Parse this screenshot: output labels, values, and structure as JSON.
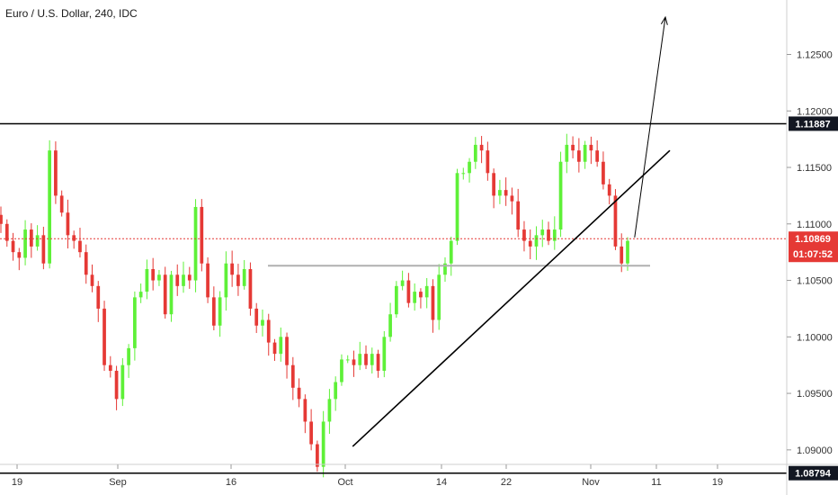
{
  "title": "Euro / U.S. Dollar, 240, IDC",
  "colors": {
    "up": "#5ef038",
    "down": "#e53935",
    "line": "#000000",
    "support": "#b0b0b0",
    "current": "#e53935"
  },
  "chart_data": {
    "type": "candlestick",
    "symbol": "EURUSD",
    "interval": "240",
    "source": "IDC",
    "y_ticks": [
      "1.12500",
      "1.12000",
      "1.11500",
      "1.11000",
      "1.10500",
      "1.10000",
      "1.09500",
      "1.09000"
    ],
    "x_ticks": [
      "19",
      "Sep",
      "16",
      "Oct",
      "14",
      "22",
      "Nov",
      "11",
      "19"
    ],
    "ylim": [
      1.0872,
      1.1295
    ],
    "resistance": 1.11887,
    "support_bottom": 1.08794,
    "support_mid": 1.1063,
    "last_price": "1.10869",
    "countdown": "01:07:52",
    "labels": {
      "resistance": "1.11887",
      "bottom": "1.08794"
    },
    "trendline": [
      {
        "date": "Oct 2",
        "price": 1.0903
      },
      {
        "date": "Nov 11",
        "price": 1.1165
      }
    ],
    "projection": [
      {
        "date": "Nov 7",
        "price": 1.1088
      },
      {
        "date": "Nov 11",
        "price": 1.1283
      }
    ],
    "closes": [
      1.11,
      1.1085,
      1.1075,
      1.107,
      1.1095,
      1.108,
      1.109,
      1.1065,
      1.1165,
      1.1125,
      1.111,
      1.109,
      1.1085,
      1.1075,
      1.1055,
      1.1045,
      1.1025,
      1.0975,
      1.097,
      1.0945,
      1.0975,
      1.099,
      1.1035,
      1.104,
      1.106,
      1.105,
      1.1055,
      1.102,
      1.1055,
      1.1045,
      1.1055,
      1.105,
      1.1115,
      1.1065,
      1.1035,
      1.101,
      1.1035,
      1.1065,
      1.1055,
      1.1045,
      1.106,
      1.1025,
      1.101,
      1.1015,
      1.0995,
      1.0985,
      1.1,
      1.0975,
      1.0955,
      1.0945,
      1.0925,
      1.0905,
      1.0885,
      1.0925,
      1.0945,
      1.096,
      1.098,
      1.098,
      1.0975,
      1.0985,
      1.0975,
      1.0985,
      1.097,
      1.1,
      1.102,
      1.1045,
      1.105,
      1.103,
      1.104,
      1.1035,
      1.1045,
      1.1015,
      1.1055,
      1.1065,
      1.1085,
      1.1145,
      1.1145,
      1.1155,
      1.117,
      1.1165,
      1.1145,
      1.1125,
      1.113,
      1.1125,
      1.112,
      1.1095,
      1.1085,
      1.108,
      1.109,
      1.1095,
      1.1085,
      1.1095,
      1.1155,
      1.117,
      1.1165,
      1.1155,
      1.117,
      1.1165,
      1.1155,
      1.1135,
      1.1125,
      1.108,
      1.1065,
      1.1085
    ]
  }
}
